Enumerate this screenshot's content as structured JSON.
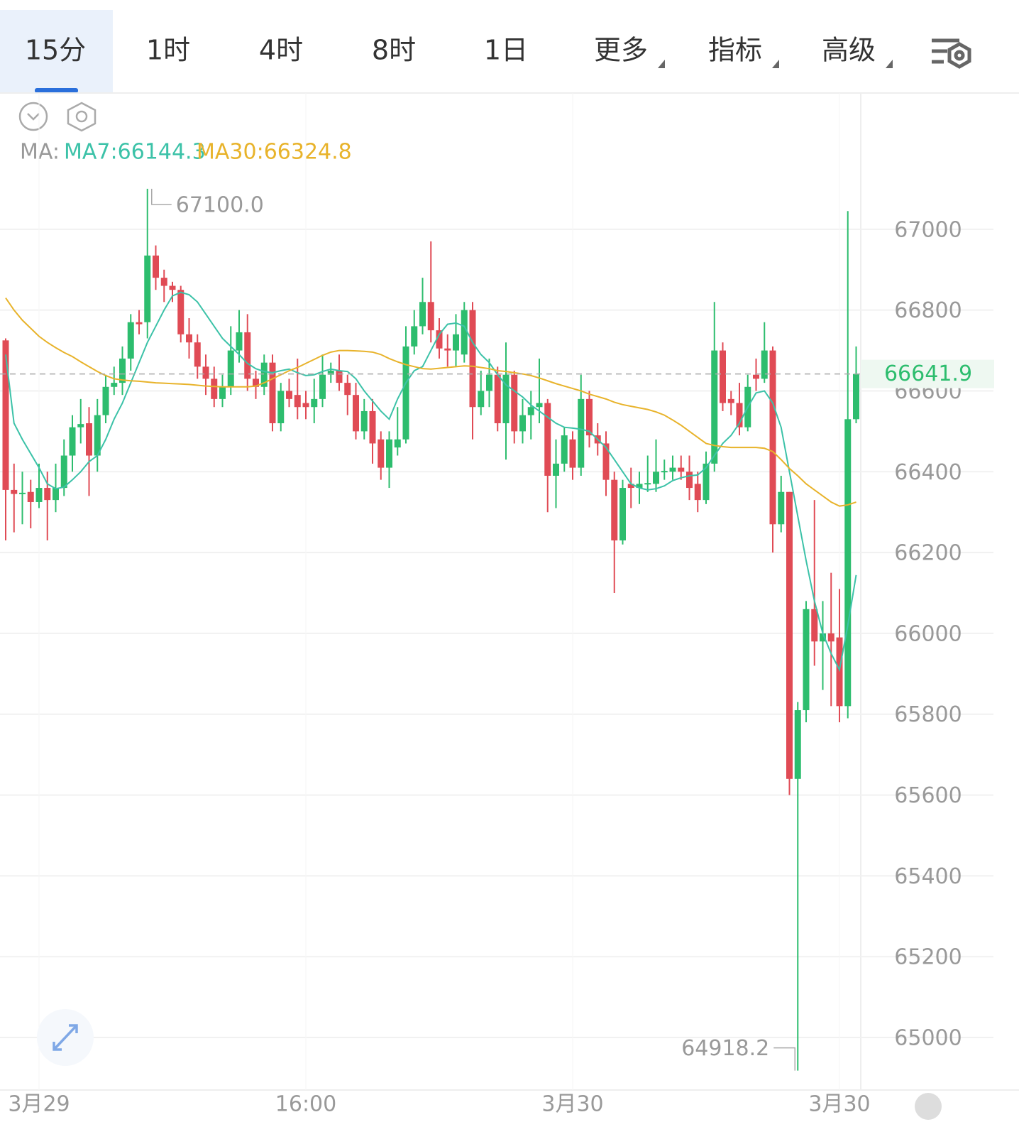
{
  "tabs": [
    "15分",
    "1时",
    "4时",
    "8时",
    "1日",
    "更多",
    "指标",
    "高级"
  ],
  "chart_data": {
    "type": "candlestick",
    "ma_legend": {
      "label": "MA:",
      "ma7": "MA7:66144.3",
      "ma30": "MA30:66324.8"
    },
    "max_label": "67100.0",
    "min_label": "64918.2",
    "up_color": "#2dbd6e",
    "down_color": "#e04b55",
    "ylim": [
      64870,
      67128
    ],
    "yticks": [
      65000,
      65200,
      65400,
      65600,
      65800,
      66000,
      66200,
      66400,
      66600,
      66800,
      67000
    ],
    "grid": true,
    "x": [
      null,
      null,
      null,
      null,
      "3月29",
      null,
      null,
      null,
      null,
      null,
      null,
      null,
      null,
      null,
      null,
      null,
      null,
      null,
      null,
      null,
      null,
      null,
      null,
      null,
      null,
      null,
      null,
      null,
      null,
      null,
      null,
      null,
      null,
      null,
      null,
      null,
      "16:00",
      null,
      null,
      null,
      null,
      null,
      null,
      null,
      null,
      null,
      null,
      null,
      null,
      null,
      null,
      null,
      null,
      null,
      null,
      null,
      null,
      null,
      null,
      null,
      null,
      null,
      null,
      null,
      null,
      null,
      null,
      null,
      "3月30",
      null,
      null,
      null,
      null,
      null,
      null,
      null,
      null,
      null,
      null,
      null,
      null,
      null,
      null,
      null,
      null,
      null,
      null,
      null,
      null,
      null,
      null,
      null,
      null,
      null,
      null,
      null,
      null,
      null,
      null,
      null,
      "3月30",
      null,
      null
    ],
    "open": [
      66725,
      66355,
      66345,
      66350,
      66325,
      66360,
      66330,
      66360,
      66440,
      66510,
      66520,
      66440,
      66540,
      66610,
      66620,
      66680,
      66770,
      66770,
      66935,
      66880,
      66860,
      66850,
      66740,
      66720,
      66660,
      66630,
      66580,
      66610,
      66700,
      66745,
      66630,
      66610,
      66670,
      66520,
      66600,
      66590,
      66570,
      66560,
      66580,
      66640,
      66650,
      66620,
      66590,
      66500,
      66550,
      66480,
      66410,
      66460,
      66480,
      66710,
      66760,
      66820,
      66750,
      66705,
      66700,
      66690,
      66800,
      66560,
      66600,
      66640,
      66520,
      66640,
      66500,
      66540,
      66560,
      66570,
      66390,
      66420,
      66480,
      66410,
      66580,
      66490,
      66470,
      66380,
      66230,
      66370,
      66360,
      66370,
      66370,
      66400,
      66400,
      66410,
      66400,
      66370,
      66330,
      66420,
      66700,
      66580,
      66570,
      66510,
      66640,
      66630,
      66700,
      66270,
      66350,
      65640,
      65810,
      66060,
      65980,
      66000,
      65990,
      65820,
      66530
    ],
    "high": [
      66730,
      66420,
      66400,
      66380,
      66420,
      66400,
      66420,
      66480,
      66540,
      66580,
      66560,
      66580,
      66640,
      66660,
      66710,
      66790,
      66800,
      67100,
      66960,
      66900,
      66870,
      66860,
      66780,
      66740,
      66690,
      66660,
      66640,
      66760,
      66800,
      66790,
      66650,
      66690,
      66690,
      66620,
      66630,
      66680,
      66600,
      66630,
      66690,
      66670,
      66690,
      66640,
      66620,
      66580,
      66580,
      66500,
      66500,
      66560,
      66760,
      66800,
      66880,
      66970,
      66780,
      66740,
      66790,
      66820,
      66820,
      66650,
      66680,
      66660,
      66720,
      66650,
      66580,
      66600,
      66680,
      66580,
      66480,
      66510,
      66500,
      66640,
      66600,
      66520,
      66500,
      66400,
      66380,
      66410,
      66400,
      66440,
      66480,
      66430,
      66440,
      66440,
      66440,
      66400,
      66450,
      66820,
      66720,
      66600,
      66620,
      66640,
      66680,
      66770,
      66710,
      66390,
      66350,
      65830,
      66080,
      66330,
      66080,
      66150,
      66110,
      67045,
      66710
    ],
    "low": [
      66230,
      66250,
      66270,
      66260,
      66310,
      66230,
      66300,
      66340,
      66400,
      66470,
      66340,
      66400,
      66520,
      66590,
      66590,
      66650,
      66740,
      66730,
      66850,
      66820,
      66820,
      66720,
      66680,
      66630,
      66590,
      66560,
      66560,
      66590,
      66670,
      66600,
      66580,
      66590,
      66500,
      66500,
      66560,
      66530,
      66530,
      66520,
      66560,
      66620,
      66600,
      66540,
      66480,
      66480,
      66420,
      66380,
      66360,
      66440,
      66470,
      66690,
      66740,
      66720,
      66680,
      66660,
      66660,
      66670,
      66480,
      66540,
      66560,
      66500,
      66430,
      66470,
      66470,
      66480,
      66520,
      66300,
      66310,
      66400,
      66380,
      66390,
      66460,
      66440,
      66340,
      66100,
      66220,
      66310,
      66320,
      66350,
      66350,
      66380,
      66380,
      66380,
      66330,
      66300,
      66320,
      66400,
      66550,
      66540,
      66490,
      66500,
      66600,
      66620,
      66200,
      66250,
      65600,
      64918.2,
      65780,
      65920,
      65860,
      65820,
      65780,
      65790,
      66520
    ],
    "close": [
      66355,
      66345,
      66348,
      66325,
      66360,
      66330,
      66360,
      66440,
      66510,
      66518,
      66440,
      66540,
      66610,
      66620,
      66680,
      66770,
      66765,
      66935,
      66880,
      66860,
      66850,
      66740,
      66720,
      66660,
      66630,
      66580,
      66610,
      66700,
      66745,
      66630,
      66610,
      66670,
      66520,
      66600,
      66580,
      66560,
      66560,
      66580,
      66640,
      66650,
      66620,
      66590,
      66500,
      66550,
      66470,
      66410,
      66480,
      66480,
      66710,
      66760,
      66820,
      66750,
      66705,
      66700,
      66740,
      66800,
      66560,
      66600,
      66640,
      66520,
      66640,
      66500,
      66540,
      66560,
      66570,
      66390,
      66420,
      66490,
      66410,
      66580,
      66490,
      66470,
      66380,
      66230,
      66360,
      66360,
      66370,
      66372,
      66400,
      66402,
      66410,
      66400,
      66360,
      66330,
      66420,
      66700,
      66570,
      66570,
      66510,
      66610,
      66630,
      66700,
      66270,
      66350,
      65640,
      65810,
      66060,
      65980,
      66000,
      65980,
      65820,
      66530,
      66641.9
    ],
    "series": [
      {
        "name": "MA7",
        "color": "#3cc2a8",
        "values": [
          66690,
          66520,
          66480,
          66445,
          66410,
          66370,
          66358,
          66362,
          66380,
          66400,
          66425,
          66440,
          66480,
          66530,
          66570,
          66620,
          66670,
          66720,
          66760,
          66800,
          66835,
          66844,
          66838,
          66820,
          66790,
          66760,
          66730,
          66710,
          66690,
          66668,
          66655,
          66648,
          66645,
          66650,
          66654,
          66645,
          66638,
          66640,
          66648,
          66654,
          66650,
          66648,
          66630,
          66600,
          66575,
          66550,
          66530,
          66580,
          66620,
          66650,
          66660,
          66700,
          66740,
          66765,
          66768,
          66760,
          66720,
          66690,
          66670,
          66640,
          66615,
          66600,
          66585,
          66565,
          66550,
          66535,
          66520,
          66510,
          66508,
          66505,
          66500,
          66480,
          66460,
          66430,
          66400,
          66370,
          66360,
          66355,
          66358,
          66365,
          66378,
          66385,
          66390,
          66392,
          66410,
          66440,
          66470,
          66490,
          66520,
          66560,
          66595,
          66600,
          66570,
          66510,
          66400,
          66290,
          66180,
          66080,
          66000,
          65950,
          65910,
          66020,
          66144.3
        ]
      },
      {
        "name": "MA30",
        "color": "#e8b32b",
        "values": [
          66830,
          66800,
          66775,
          66755,
          66735,
          66720,
          66707,
          66695,
          66685,
          66672,
          66660,
          66648,
          66638,
          66630,
          66627,
          66625,
          66624,
          66622,
          66620,
          66619,
          66618,
          66617,
          66616,
          66614,
          66612,
          66611,
          66610,
          66610,
          66610,
          66610,
          66612,
          66620,
          66630,
          66640,
          66650,
          66658,
          66668,
          66678,
          66688,
          66696,
          66700,
          66700,
          66699,
          66698,
          66696,
          66690,
          66680,
          66672,
          66665,
          66660,
          66655,
          66654,
          66656,
          66658,
          66660,
          66662,
          66661,
          66658,
          66655,
          66650,
          66648,
          66645,
          66642,
          66638,
          66632,
          66625,
          66618,
          66612,
          66606,
          66600,
          66592,
          66586,
          66580,
          66572,
          66566,
          66562,
          66558,
          66554,
          66548,
          66540,
          66528,
          66515,
          66500,
          66485,
          66470,
          66465,
          66462,
          66460,
          66460,
          66460,
          66460,
          66458,
          66450,
          66430,
          66408,
          66390,
          66370,
          66355,
          66340,
          66325,
          66315,
          66318,
          66324.8
        ]
      }
    ]
  }
}
